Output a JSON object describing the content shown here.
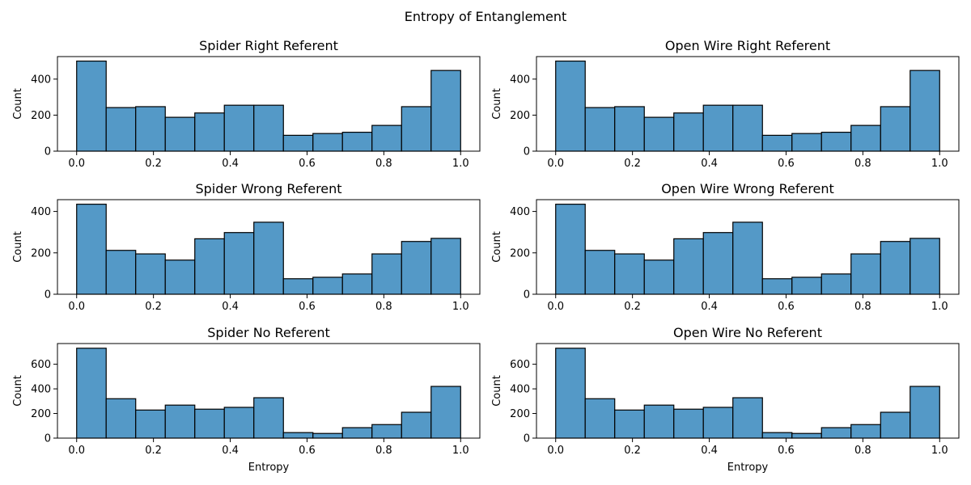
{
  "figure": {
    "suptitle": "Entropy of Entanglement"
  },
  "colors": {
    "bar_fill": "#5499c7",
    "bar_edge": "#000000",
    "background": "#ffffff"
  },
  "chart_data": [
    {
      "type": "bar",
      "title": "Spider Right Referent",
      "xlabel": "",
      "ylabel": "Count",
      "bin_edges": [
        0.0,
        0.0769,
        0.1538,
        0.2308,
        0.3077,
        0.3846,
        0.4615,
        0.5385,
        0.6154,
        0.6923,
        0.7692,
        0.8462,
        0.9231,
        1.0
      ],
      "values": [
        500,
        242,
        247,
        188,
        212,
        255,
        255,
        88,
        98,
        105,
        143,
        247,
        448
      ],
      "xlim": [
        -0.05,
        1.05
      ],
      "ylim": [
        0,
        525
      ],
      "xticks": [
        "0.0",
        "0.2",
        "0.4",
        "0.6",
        "0.8",
        "1.0"
      ],
      "yticks": [
        "0",
        "200",
        "400"
      ],
      "ytick_values": [
        0,
        200,
        400
      ]
    },
    {
      "type": "bar",
      "title": "Open Wire Right Referent",
      "xlabel": "",
      "ylabel": "Count",
      "bin_edges": [
        0.0,
        0.0769,
        0.1538,
        0.2308,
        0.3077,
        0.3846,
        0.4615,
        0.5385,
        0.6154,
        0.6923,
        0.7692,
        0.8462,
        0.9231,
        1.0
      ],
      "values": [
        500,
        242,
        247,
        188,
        212,
        255,
        255,
        88,
        98,
        105,
        143,
        247,
        448
      ],
      "xlim": [
        -0.05,
        1.05
      ],
      "ylim": [
        0,
        525
      ],
      "xticks": [
        "0.0",
        "0.2",
        "0.4",
        "0.6",
        "0.8",
        "1.0"
      ],
      "yticks": [
        "0",
        "200",
        "400"
      ],
      "ytick_values": [
        0,
        200,
        400
      ]
    },
    {
      "type": "bar",
      "title": "Spider Wrong Referent",
      "xlabel": "",
      "ylabel": "Count",
      "bin_edges": [
        0.0,
        0.0769,
        0.1538,
        0.2308,
        0.3077,
        0.3846,
        0.4615,
        0.5385,
        0.6154,
        0.6923,
        0.7692,
        0.8462,
        0.9231,
        1.0
      ],
      "values": [
        435,
        212,
        195,
        165,
        268,
        298,
        348,
        75,
        82,
        98,
        195,
        255,
        270
      ],
      "xlim": [
        -0.05,
        1.05
      ],
      "ylim": [
        0,
        457
      ],
      "xticks": [
        "0.0",
        "0.2",
        "0.4",
        "0.6",
        "0.8",
        "1.0"
      ],
      "yticks": [
        "0",
        "200",
        "400"
      ],
      "ytick_values": [
        0,
        200,
        400
      ]
    },
    {
      "type": "bar",
      "title": "Open Wire Wrong Referent",
      "xlabel": "",
      "ylabel": "Count",
      "bin_edges": [
        0.0,
        0.0769,
        0.1538,
        0.2308,
        0.3077,
        0.3846,
        0.4615,
        0.5385,
        0.6154,
        0.6923,
        0.7692,
        0.8462,
        0.9231,
        1.0
      ],
      "values": [
        435,
        212,
        195,
        165,
        268,
        298,
        348,
        75,
        82,
        98,
        195,
        255,
        270
      ],
      "xlim": [
        -0.05,
        1.05
      ],
      "ylim": [
        0,
        457
      ],
      "xticks": [
        "0.0",
        "0.2",
        "0.4",
        "0.6",
        "0.8",
        "1.0"
      ],
      "yticks": [
        "0",
        "200",
        "400"
      ],
      "ytick_values": [
        0,
        200,
        400
      ]
    },
    {
      "type": "bar",
      "title": "Spider No Referent",
      "xlabel": "Entropy",
      "ylabel": "Count",
      "bin_edges": [
        0.0,
        0.0769,
        0.1538,
        0.2308,
        0.3077,
        0.3846,
        0.4615,
        0.5385,
        0.6154,
        0.6923,
        0.7692,
        0.8462,
        0.9231,
        1.0
      ],
      "values": [
        730,
        320,
        228,
        268,
        235,
        250,
        328,
        45,
        38,
        85,
        110,
        210,
        420
      ],
      "xlim": [
        -0.05,
        1.05
      ],
      "ylim": [
        0,
        768
      ],
      "xticks": [
        "0.0",
        "0.2",
        "0.4",
        "0.6",
        "0.8",
        "1.0"
      ],
      "yticks": [
        "0",
        "200",
        "400",
        "600"
      ],
      "ytick_values": [
        0,
        200,
        400,
        600
      ]
    },
    {
      "type": "bar",
      "title": "Open Wire No Referent",
      "xlabel": "Entropy",
      "ylabel": "Count",
      "bin_edges": [
        0.0,
        0.0769,
        0.1538,
        0.2308,
        0.3077,
        0.3846,
        0.4615,
        0.5385,
        0.6154,
        0.6923,
        0.7692,
        0.8462,
        0.9231,
        1.0
      ],
      "values": [
        730,
        320,
        228,
        268,
        235,
        250,
        328,
        45,
        38,
        85,
        110,
        210,
        420
      ],
      "xlim": [
        -0.05,
        1.05
      ],
      "ylim": [
        0,
        768
      ],
      "xticks": [
        "0.0",
        "0.2",
        "0.4",
        "0.6",
        "0.8",
        "1.0"
      ],
      "yticks": [
        "0",
        "200",
        "400",
        "600"
      ],
      "ytick_values": [
        0,
        200,
        400,
        600
      ]
    }
  ]
}
